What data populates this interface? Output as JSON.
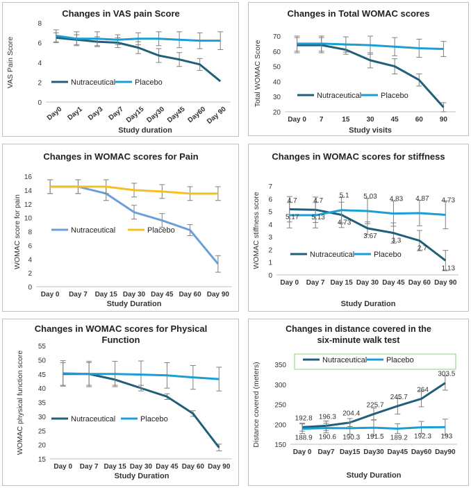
{
  "chart_data": [
    {
      "type": "line",
      "title": "Changes in VAS pain Score",
      "xlabel": "Study duration",
      "ylabel": "VAS Pain Score",
      "ylim": [
        0,
        8
      ],
      "yticks": [
        0,
        2,
        4,
        6,
        8
      ],
      "categories": [
        "Day0",
        "Day1",
        "Day3",
        "Day7",
        "Day15",
        "Day30",
        "Day45",
        "Day60",
        "Day 90"
      ],
      "series": [
        {
          "name": "Nutraceutical",
          "color": "#1f5f7a",
          "values": [
            6.5,
            6.3,
            6.1,
            6.0,
            5.5,
            4.7,
            4.3,
            3.8,
            2.1
          ],
          "errors": [
            0.5,
            0.5,
            0.5,
            0.5,
            0.6,
            0.7,
            0.7,
            0.6,
            0
          ]
        },
        {
          "name": "Placebo",
          "color": "#1a9ed4",
          "values": [
            6.7,
            6.4,
            6.4,
            6.3,
            6.4,
            6.4,
            6.3,
            6.2,
            6.2
          ],
          "errors": [
            0.6,
            0.7,
            0.7,
            0.5,
            0.6,
            0.7,
            0.8,
            0.8,
            0.9
          ]
        }
      ],
      "legend": "middle"
    },
    {
      "type": "line",
      "title": "Changes in Total WOMAC scores",
      "xlabel": "Study visits",
      "ylabel": "Total WOMAC Score",
      "ylim": [
        20,
        70
      ],
      "yticks": [
        20,
        30,
        40,
        50,
        60,
        70
      ],
      "categories": [
        "Day 0",
        "7",
        "15",
        "30",
        "45",
        "60",
        "90"
      ],
      "series": [
        {
          "name": "Nutraceutical",
          "color": "#1f5f7a",
          "values": [
            64,
            64,
            61,
            54,
            50,
            41,
            23
          ],
          "errors": [
            5,
            5,
            3,
            5,
            5,
            4,
            3
          ]
        },
        {
          "name": "Placebo",
          "color": "#1a9ed4",
          "values": [
            65,
            65,
            64.5,
            64,
            63,
            62,
            61.5
          ],
          "errors": [
            5,
            5,
            5,
            6,
            6,
            6,
            5
          ]
        }
      ],
      "legend": "bottom"
    },
    {
      "type": "line",
      "title": "Changes in WOMAC scores for Pain",
      "xlabel": "Study Duration",
      "ylabel": "WOMAC score for pain",
      "ylim": [
        0,
        16
      ],
      "yticks": [
        0,
        2,
        4,
        6,
        8,
        10,
        12,
        14,
        16
      ],
      "categories": [
        "Day 0",
        "Day 7",
        "Day 15",
        "Day 30",
        "Day 45",
        "Day 60",
        "Day 90"
      ],
      "series": [
        {
          "name": "Nutraceutical",
          "color": "#6a9fd8",
          "values": [
            14.5,
            14.5,
            13.5,
            10.8,
            9.6,
            8.2,
            3.3
          ],
          "errors": [
            1.0,
            1.0,
            1.0,
            1.0,
            1.0,
            0.8,
            1.2
          ]
        },
        {
          "name": "Placebo",
          "color": "#f5c020",
          "values": [
            14.5,
            14.5,
            14.5,
            14.0,
            13.8,
            13.5,
            13.5
          ],
          "errors": [
            1.0,
            1.0,
            1.0,
            1.0,
            1.0,
            1.0,
            1.0
          ]
        }
      ],
      "legend": "middle"
    },
    {
      "type": "line",
      "title": "Changes in WOMAC scores for stiffness",
      "xlabel": "Study Duration",
      "ylabel": "WOMAC stiffness score",
      "ylim": [
        0,
        7
      ],
      "yticks": [
        0,
        1,
        2,
        3,
        4,
        5,
        6,
        7
      ],
      "categories": [
        "Day 0",
        "Day 7",
        "Day 15",
        "Day 30",
        "Day 45",
        "Day 60",
        "Day 90"
      ],
      "series": [
        {
          "name": "Nutraceutical",
          "color": "#1f5f7a",
          "values": [
            5.17,
            5.13,
            4.73,
            3.67,
            3.3,
            2.7,
            1.13
          ],
          "labels": [
            "5.17",
            "5.13",
            "4.73",
            "3.67",
            "3.3",
            "2.7",
            "1.13"
          ],
          "errors": [
            1.0,
            1.0,
            1.0,
            0.5,
            0.8,
            0.8,
            0.8
          ]
        },
        {
          "name": "Placebo",
          "color": "#1a9ed4",
          "values": [
            4.7,
            4.7,
            5.1,
            5.03,
            4.83,
            4.87,
            4.73
          ],
          "labels": [
            "4.7",
            "4.7",
            "5.1",
            "5.03",
            "4.83",
            "4.87",
            "4.73"
          ],
          "errors": [
            1.0,
            1.0,
            1.0,
            1.0,
            1.0,
            1.0,
            1.1
          ]
        }
      ],
      "legend": "bottom"
    },
    {
      "type": "line",
      "title": "Changes in WOMAC scores for Physical Function",
      "xlabel": "Study Duration",
      "ylabel": "WOMAC physical function score",
      "ylim": [
        15,
        55
      ],
      "yticks": [
        15,
        20,
        25,
        30,
        35,
        40,
        45,
        50,
        55
      ],
      "categories": [
        "Day 0",
        "Day 7",
        "Day 15",
        "Day 30",
        "Day 45",
        "Day 60",
        "Day 90"
      ],
      "series": [
        {
          "name": "Nutraceutical",
          "color": "#1f5f7a",
          "values": [
            45,
            45,
            43,
            40,
            37,
            31,
            19
          ],
          "errors": [
            4,
            4,
            2,
            1,
            1,
            1,
            1.2
          ]
        },
        {
          "name": "Placebo",
          "color": "#1a9ed4",
          "values": [
            45.2,
            45,
            45,
            44.8,
            44.5,
            43.8,
            43.2
          ],
          "errors": [
            4.5,
            4.5,
            4.5,
            4.8,
            4.5,
            4.2,
            4.2
          ]
        }
      ],
      "legend": "middle"
    },
    {
      "type": "line",
      "title": "Changes in distance covered in the six-minute walk test",
      "xlabel": "Study Duration",
      "ylabel": "Distance covered (meters)",
      "ylim": [
        150,
        350
      ],
      "yticks": [
        150,
        200,
        250,
        300,
        350
      ],
      "categories": [
        "Day 0",
        "Day7",
        "Day15",
        "Day30",
        "Day45",
        "Day60",
        "Day90"
      ],
      "series": [
        {
          "name": "Nutraceutical",
          "color": "#1f5f7a",
          "values": [
            192.8,
            196.3,
            204.4,
            225.7,
            245.7,
            264,
            303.5
          ],
          "labels": [
            "192.8",
            "196.3",
            "204.4",
            "225.7",
            "245.7",
            "264",
            "303.5"
          ],
          "errors": [
            10,
            12,
            10,
            15,
            20,
            20,
            18
          ]
        },
        {
          "name": "Placebo",
          "color": "#1a9ed4",
          "values": [
            188.9,
            190.6,
            190.3,
            191.5,
            189.2,
            192.3,
            193
          ],
          "labels": [
            "188.9",
            "190.6",
            "190.3",
            "191.5",
            "189.2",
            "192.3",
            "193"
          ],
          "errors": [
            12,
            12,
            15,
            20,
            12,
            15,
            20
          ]
        }
      ],
      "legend": "top"
    }
  ]
}
